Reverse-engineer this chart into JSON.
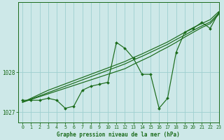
{
  "xlabel": "Graphe pression niveau de la mer (hPa)",
  "xlim": [
    -0.5,
    23
  ],
  "ylim": [
    1026.75,
    1029.75
  ],
  "yticks": [
    1027,
    1028
  ],
  "xticks": [
    0,
    1,
    2,
    3,
    4,
    5,
    6,
    7,
    8,
    9,
    10,
    11,
    12,
    13,
    14,
    15,
    16,
    17,
    18,
    19,
    20,
    21,
    22,
    23
  ],
  "bg_color": "#cde8e8",
  "grid_color": "#9ecfcf",
  "line_color": "#1a6b1a",
  "series": {
    "zigzag": [
      1027.3,
      1027.3,
      1027.3,
      1027.35,
      1027.3,
      1027.1,
      1027.15,
      1027.55,
      1027.65,
      1027.7,
      1027.75,
      1028.75,
      1028.6,
      1028.35,
      1027.95,
      1027.95,
      1027.1,
      1027.35,
      1028.5,
      1029.0,
      1029.1,
      1029.25,
      1029.1,
      1029.5
    ],
    "trend1": [
      1027.25,
      1027.32,
      1027.39,
      1027.46,
      1027.53,
      1027.6,
      1027.67,
      1027.74,
      1027.81,
      1027.88,
      1027.95,
      1028.02,
      1028.09,
      1028.2,
      1028.3,
      1028.4,
      1028.52,
      1028.63,
      1028.75,
      1028.88,
      1029.0,
      1029.12,
      1029.22,
      1029.45
    ],
    "trend2": [
      1027.25,
      1027.33,
      1027.41,
      1027.49,
      1027.57,
      1027.65,
      1027.73,
      1027.81,
      1027.89,
      1027.97,
      1028.05,
      1028.13,
      1028.21,
      1028.31,
      1028.4,
      1028.5,
      1028.6,
      1028.7,
      1028.82,
      1028.93,
      1029.05,
      1029.16,
      1029.26,
      1029.48
    ],
    "trend3": [
      1027.25,
      1027.35,
      1027.45,
      1027.55,
      1027.63,
      1027.71,
      1027.79,
      1027.87,
      1027.95,
      1028.03,
      1028.11,
      1028.19,
      1028.27,
      1028.37,
      1028.46,
      1028.56,
      1028.66,
      1028.76,
      1028.88,
      1029.0,
      1029.12,
      1029.22,
      1029.32,
      1029.52
    ]
  }
}
